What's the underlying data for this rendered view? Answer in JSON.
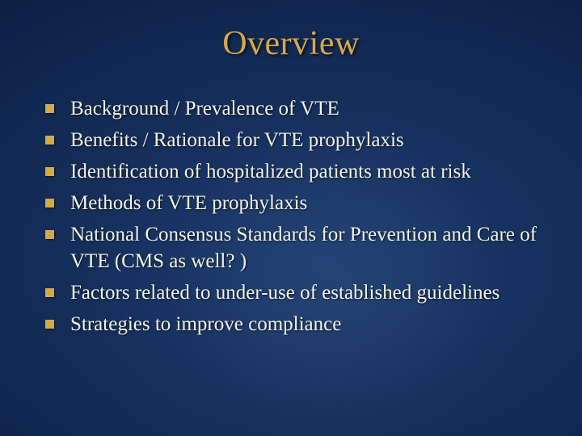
{
  "slide": {
    "title": "Overview",
    "title_color": "#d5a84a",
    "title_fontsize": 42,
    "bullets": [
      {
        "text": "Background / Prevalence of VTE"
      },
      {
        "text": "Benefits / Rationale for VTE prophylaxis"
      },
      {
        "text": "Identification of hospitalized patients most at risk"
      },
      {
        "text": "Methods of VTE prophylaxis"
      },
      {
        "text": "National Consensus Standards for Prevention and Care of VTE (CMS as well? )"
      },
      {
        "text": "Factors related to under-use of established guidelines"
      },
      {
        "text": "Strategies to improve compliance"
      }
    ],
    "bullet_marker_color": "#d5a84a",
    "bullet_marker_size": 11,
    "bullet_text_color": "#f5f2e8",
    "bullet_fontsize": 25,
    "background_gradient": {
      "type": "radial",
      "stops": [
        "#1a3a6e",
        "#132d58",
        "#0b1d3f",
        "#050f24"
      ]
    },
    "font_family": "Garamond, Times New Roman, serif"
  }
}
